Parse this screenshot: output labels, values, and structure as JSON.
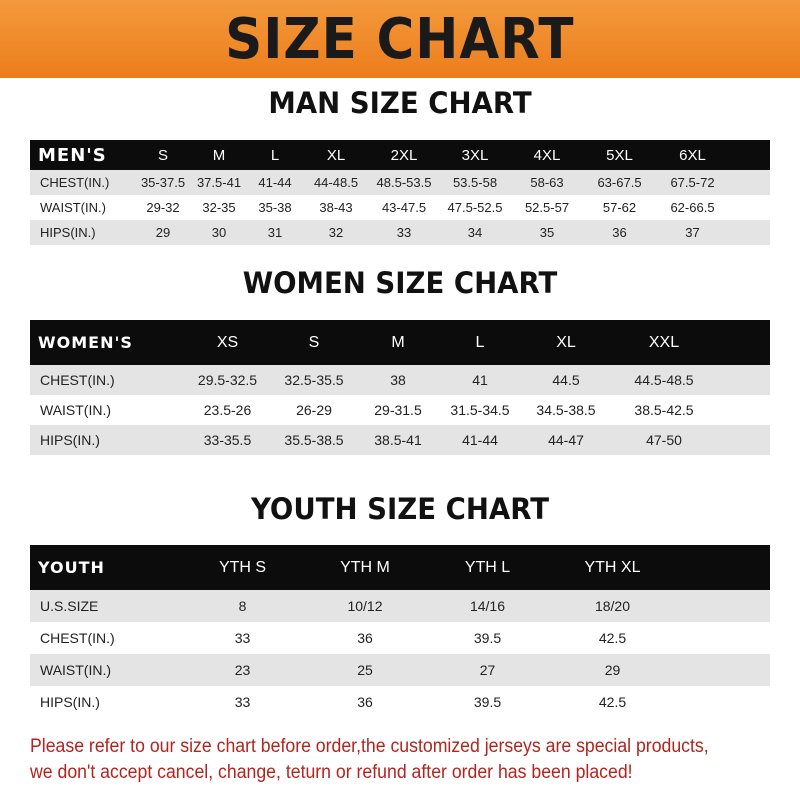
{
  "banner_title": "SIZE CHART",
  "men": {
    "title": "MAN SIZE CHART",
    "header": "MEN'S",
    "sizes": [
      "S",
      "M",
      "L",
      "XL",
      "2XL",
      "3XL",
      "4XL",
      "5XL",
      "6XL"
    ],
    "rows": [
      {
        "label": "CHEST(IN.)",
        "values": [
          "35-37.5",
          "37.5-41",
          "41-44",
          "44-48.5",
          "48.5-53.5",
          "53.5-58",
          "58-63",
          "63-67.5",
          "67.5-72"
        ]
      },
      {
        "label": "WAIST(IN.)",
        "values": [
          "29-32",
          "32-35",
          "35-38",
          "38-43",
          "43-47.5",
          "47.5-52.5",
          "52.5-57",
          "57-62",
          "62-66.5"
        ]
      },
      {
        "label": "HIPS(IN.)",
        "values": [
          "29",
          "30",
          "31",
          "32",
          "33",
          "34",
          "35",
          "36",
          "37"
        ]
      }
    ]
  },
  "women": {
    "title": "WOMEN SIZE CHART",
    "header": "WOMEN'S",
    "sizes": [
      "XS",
      "S",
      "M",
      "L",
      "XL",
      "XXL"
    ],
    "rows": [
      {
        "label": "CHEST(IN.)",
        "values": [
          "29.5-32.5",
          "32.5-35.5",
          "38",
          "41",
          "44.5",
          "44.5-48.5"
        ]
      },
      {
        "label": "WAIST(IN.)",
        "values": [
          "23.5-26",
          "26-29",
          "29-31.5",
          "31.5-34.5",
          "34.5-38.5",
          "38.5-42.5"
        ]
      },
      {
        "label": "HIPS(IN.)",
        "values": [
          "33-35.5",
          "35.5-38.5",
          "38.5-41",
          "41-44",
          "44-47",
          "47-50"
        ]
      }
    ]
  },
  "youth": {
    "title": "YOUTH SIZE CHART",
    "header": "YOUTH",
    "sizes": [
      "YTH S",
      "YTH M",
      "YTH L",
      "YTH XL"
    ],
    "rows": [
      {
        "label": "U.S.SIZE",
        "values": [
          "8",
          "10/12",
          "14/16",
          "18/20"
        ]
      },
      {
        "label": "CHEST(IN.)",
        "values": [
          "33",
          "36",
          "39.5",
          "42.5"
        ]
      },
      {
        "label": "WAIST(IN.)",
        "values": [
          "23",
          "25",
          "27",
          "29"
        ]
      },
      {
        "label": "HIPS(IN.)",
        "values": [
          "33",
          "36",
          "39.5",
          "42.5"
        ]
      }
    ]
  },
  "notice": [
    "Please refer to our size chart before order,the customized jerseys are special products,",
    "we don't accept cancel, change, teturn or refund after order has been placed!"
  ],
  "colors": {
    "banner": "#ec7d1c",
    "header_row": "#0c0c0c",
    "shaded_row": "#e4e4e4",
    "notice": "#b3241f"
  }
}
